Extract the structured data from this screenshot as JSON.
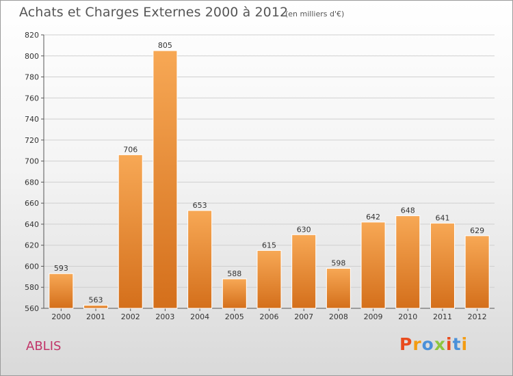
{
  "header": {
    "title": "Achats et Charges Externes 2000 à 2012",
    "subtitle": "(en milliers d'€)"
  },
  "footer": {
    "commune": "ABLIS",
    "brand": "Proxiti"
  },
  "colors": {
    "bar_light": "#f7a855",
    "bar_dark": "#d46f1b",
    "commune_text": "#c13468",
    "brand_letters": [
      "#e94b1e",
      "#f39c12",
      "#4a90d9",
      "#8dc63f",
      "#e94b1e",
      "#4a90d9",
      "#f39c12"
    ]
  },
  "chart_data": {
    "type": "bar",
    "title": "Achats et Charges Externes 2000 à 2012",
    "subtitle": "(en milliers d'€)",
    "categories": [
      "2000",
      "2001",
      "2002",
      "2003",
      "2004",
      "2005",
      "2006",
      "2007",
      "2008",
      "2009",
      "2010",
      "2011",
      "2012"
    ],
    "values": [
      593,
      563,
      706,
      805,
      653,
      588,
      615,
      630,
      598,
      642,
      648,
      641,
      629
    ],
    "ylim": [
      560,
      820
    ],
    "yticks": [
      560,
      580,
      600,
      620,
      640,
      660,
      680,
      700,
      720,
      740,
      760,
      780,
      800,
      820
    ],
    "grid": true,
    "legend": "none"
  }
}
